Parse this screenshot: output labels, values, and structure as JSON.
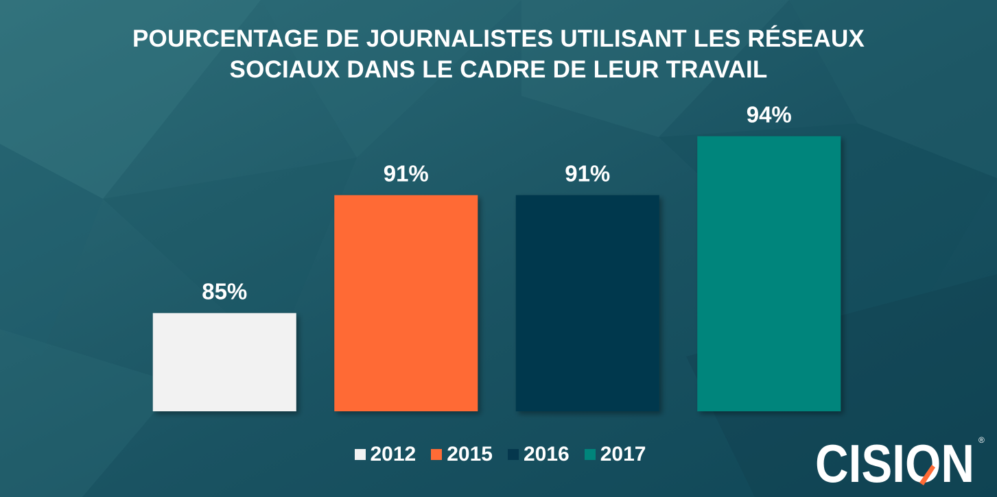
{
  "title_lines": [
    "POURCENTAGE DE JOURNALISTES UTILISANT LES RÉSEAUX",
    "SOCIAUX DANS LE CADRE DE LEUR TRAVAIL"
  ],
  "chart_data": {
    "type": "bar",
    "title": "POURCENTAGE DE JOURNALISTES UTILISANT LES RÉSEAUX SOCIAUX DANS LE CADRE DE LEUR TRAVAIL",
    "categories": [
      "2012",
      "2015",
      "2016",
      "2017"
    ],
    "values": [
      85,
      91,
      91,
      94
    ],
    "value_labels": [
      "85%",
      "91%",
      "91%",
      "94%"
    ],
    "colors": [
      "#f2f2f2",
      "#ff6b35",
      "#05374d",
      "#00857b"
    ],
    "ylim": [
      80,
      95
    ],
    "grid": false,
    "legend": "bottom",
    "legend_entries": [
      {
        "label": "2012",
        "color": "#f2f2f2"
      },
      {
        "label": "2015",
        "color": "#ff6b35"
      },
      {
        "label": "2016",
        "color": "#05374d"
      },
      {
        "label": "2017",
        "color": "#00857b"
      }
    ]
  },
  "brand": {
    "logo_text": "CISION",
    "registered_mark": "®",
    "text_color": "#ffffff",
    "accent_color": "#ff6b35"
  }
}
